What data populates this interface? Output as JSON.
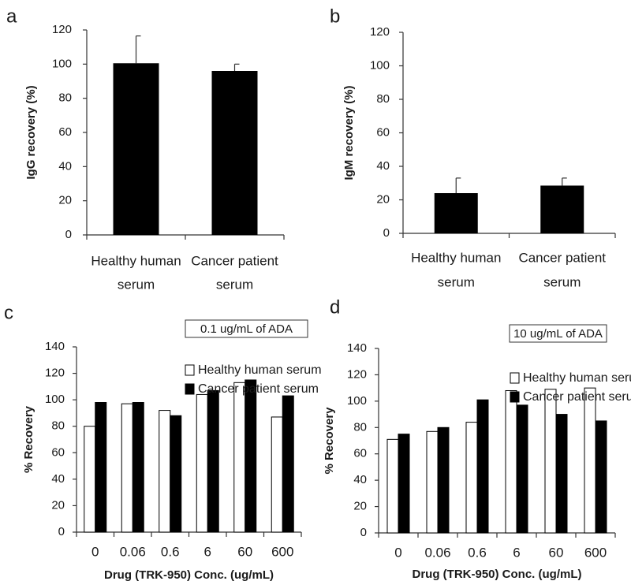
{
  "chart_data": [
    {
      "type": "bar",
      "panel_label": "a",
      "categories": [
        [
          "Healthy human",
          "serum"
        ],
        [
          "Cancer patient",
          "serum"
        ]
      ],
      "values": [
        100.5,
        96
      ],
      "errors": [
        16,
        4
      ],
      "ylabel": "IgG recovery (%)",
      "xlabel": "",
      "ylim": [
        0,
        120
      ],
      "yticks": [
        "0",
        "20",
        "40",
        "60",
        "80",
        "100",
        "120"
      ],
      "colors": {
        "bar": "#000000"
      }
    },
    {
      "type": "bar",
      "panel_label": "b",
      "categories": [
        [
          "Healthy human",
          "serum"
        ],
        [
          "Cancer patient",
          "serum"
        ]
      ],
      "values": [
        24,
        28.5
      ],
      "errors": [
        9,
        4.5
      ],
      "ylabel": "IgM recovery (%)",
      "xlabel": "",
      "ylim": [
        0,
        120
      ],
      "yticks": [
        "0",
        "20",
        "40",
        "60",
        "80",
        "100",
        "120"
      ],
      "colors": {
        "bar": "#000000"
      }
    },
    {
      "type": "bar",
      "panel_label": "c",
      "title": "0.1 ug/mL of ADA",
      "categories": [
        "0",
        "0.06",
        "0.6",
        "6",
        "60",
        "600"
      ],
      "series": [
        {
          "name": "Healthy human serum",
          "values": [
            80,
            97,
            92,
            104,
            113,
            87
          ]
        },
        {
          "name": "Cancer patient serum",
          "values": [
            98,
            98,
            88,
            107,
            115,
            103
          ]
        }
      ],
      "ylabel": "% Recovery",
      "xlabel": "Drug (TRK-950) Conc. (ug/mL)",
      "ylim": [
        0,
        140
      ],
      "yticks": [
        "0",
        "20",
        "40",
        "60",
        "80",
        "100",
        "120",
        "140"
      ],
      "colors": {
        "healthy": "#ffffff",
        "cancer": "#000000"
      }
    },
    {
      "type": "bar",
      "panel_label": "d",
      "title": "10 ug/mL of ADA",
      "categories": [
        "0",
        "0.06",
        "0.6",
        "6",
        "60",
        "600"
      ],
      "series": [
        {
          "name": "Healthy human serum",
          "values": [
            71,
            77,
            84,
            108,
            109,
            110
          ]
        },
        {
          "name": "Cancer patient serum",
          "values": [
            75,
            80,
            101,
            97,
            90,
            85
          ]
        }
      ],
      "ylabel": "% Recovery",
      "xlabel": "Drug (TRK-950) Conc. (ug/mL)",
      "ylim": [
        0,
        140
      ],
      "yticks": [
        "0",
        "20",
        "40",
        "60",
        "80",
        "100",
        "120",
        "140"
      ],
      "colors": {
        "healthy": "#ffffff",
        "cancer": "#000000"
      }
    }
  ]
}
